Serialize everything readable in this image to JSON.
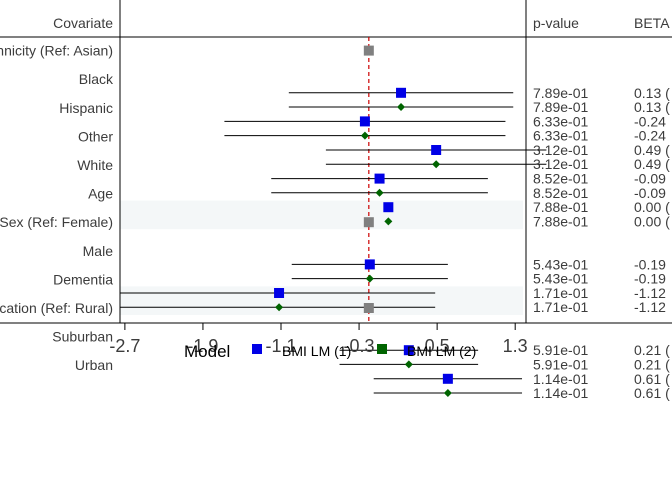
{
  "chart_data": {
    "type": "forest",
    "headers": {
      "covariate": "Covariate",
      "pvalue": "p-value",
      "beta": "BETA"
    },
    "x_ticks": [
      -2.7,
      -1.9,
      -1.1,
      -0.3,
      0.5,
      1.3
    ],
    "x_tick_labels": [
      "-2.7",
      "-1.9",
      "-1.1",
      "-0.3",
      "0.5",
      "1.3"
    ],
    "xlim": [
      -2.75,
      1.38
    ],
    "reference_line": -0.2,
    "shaded_rows": [
      "Age",
      "Dementia"
    ],
    "colors": {
      "model1": "#0000e6",
      "model2": "#006400",
      "reference": "#808080",
      "refline": "#cc0000",
      "shade": "#f4f7f8"
    },
    "legend": {
      "title": "Model",
      "items": [
        "BMI LM (1)",
        "BMI LM (2)"
      ]
    },
    "rows": [
      {
        "label": "Ethnicity (Ref: Asian)",
        "reference": true
      },
      {
        "label": "Black",
        "model1": {
          "est": 0.13,
          "lo": -1.02,
          "hi": 1.28,
          "p": "7.89e-01",
          "beta": "0.13 ("
        },
        "model2": {
          "est": 0.13,
          "lo": -1.02,
          "hi": 1.28,
          "p": "7.89e-01",
          "beta": "0.13 ("
        }
      },
      {
        "label": "Hispanic",
        "model1": {
          "est": -0.24,
          "lo": -1.68,
          "hi": 1.2,
          "p": "6.33e-01",
          "beta": "-0.24"
        },
        "model2": {
          "est": -0.24,
          "lo": -1.68,
          "hi": 1.2,
          "p": "6.33e-01",
          "beta": "-0.24"
        }
      },
      {
        "label": "Other",
        "model1": {
          "est": 0.49,
          "lo": -0.64,
          "hi": 1.62,
          "p": "3.12e-01",
          "beta": "0.49 ("
        },
        "model2": {
          "est": 0.49,
          "lo": -0.64,
          "hi": 1.62,
          "p": "3.12e-01",
          "beta": "0.49 ("
        }
      },
      {
        "label": "White",
        "model1": {
          "est": -0.09,
          "lo": -1.2,
          "hi": 1.02,
          "p": "8.52e-01",
          "beta": "-0.09"
        },
        "model2": {
          "est": -0.09,
          "lo": -1.2,
          "hi": 1.02,
          "p": "8.52e-01",
          "beta": "-0.09"
        }
      },
      {
        "label": "Age",
        "model1": {
          "est": 0.0,
          "lo": -0.02,
          "hi": 0.02,
          "p": "7.88e-01",
          "beta": "0.00 ("
        },
        "model2": {
          "est": 0.0,
          "lo": -0.02,
          "hi": 0.02,
          "p": "7.88e-01",
          "beta": "0.00 ("
        }
      },
      {
        "label": "Sex (Ref: Female)",
        "reference": true
      },
      {
        "label": "Male",
        "model1": {
          "est": -0.19,
          "lo": -0.99,
          "hi": 0.61,
          "p": "5.43e-01",
          "beta": "-0.19"
        },
        "model2": {
          "est": -0.19,
          "lo": -0.99,
          "hi": 0.61,
          "p": "5.43e-01",
          "beta": "-0.19"
        }
      },
      {
        "label": "Dementia",
        "model1": {
          "est": -1.12,
          "lo": -2.75,
          "hi": 0.48,
          "p": "1.71e-01",
          "beta": "-1.12"
        },
        "model2": {
          "est": -1.12,
          "lo": -2.75,
          "hi": 0.48,
          "p": "1.71e-01",
          "beta": "-1.12"
        }
      },
      {
        "label": "Location (Ref: Rural)",
        "reference": true
      },
      {
        "label": "Suburban",
        "model1": {
          "est": 0.21,
          "lo": -0.5,
          "hi": 0.92,
          "p": "5.91e-01",
          "beta": "0.21 ("
        },
        "model2": {
          "est": 0.21,
          "lo": -0.5,
          "hi": 0.92,
          "p": "5.91e-01",
          "beta": "0.21 ("
        }
      },
      {
        "label": "Urban",
        "model1": {
          "est": 0.61,
          "lo": -0.15,
          "hi": 1.37,
          "p": "1.14e-01",
          "beta": "0.61 ("
        },
        "model2": {
          "est": 0.61,
          "lo": -0.15,
          "hi": 1.37,
          "p": "1.14e-01",
          "beta": "0.61 ("
        }
      }
    ]
  }
}
